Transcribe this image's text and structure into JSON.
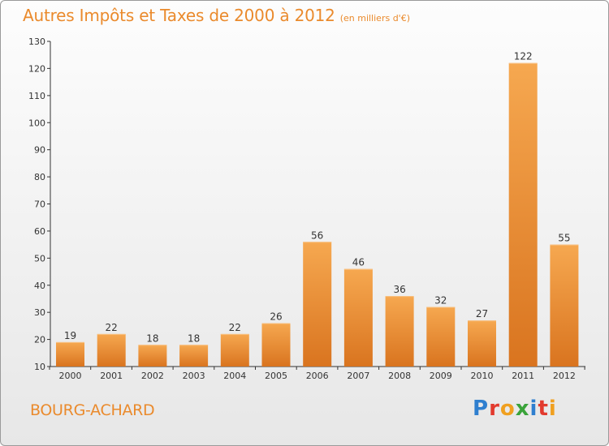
{
  "header": {
    "title": "Autres Impôts et Taxes de 2000 à 2012",
    "subtitle": "(en milliers d'€)"
  },
  "footer": {
    "commune": "BOURG-ACHARD"
  },
  "logo": {
    "text": "Proxiti",
    "letters": [
      {
        "char": "P",
        "color": "#2f7fcf"
      },
      {
        "char": "r",
        "color": "#e23a2e"
      },
      {
        "char": "o",
        "color": "#f0a020"
      },
      {
        "char": "x",
        "color": "#3aa33a"
      },
      {
        "char": "i",
        "color": "#2f7fcf"
      },
      {
        "char": "t",
        "color": "#e23a2e"
      },
      {
        "char": "i",
        "color": "#f0a020"
      }
    ]
  },
  "colors": {
    "accent": "#ea8a2c",
    "bar_light": "#f6a850",
    "bar_dark": "#d9741f"
  },
  "chart_data": {
    "type": "bar",
    "title": "Autres Impôts et Taxes de 2000 à 2012",
    "subtitle": "(en milliers d'€)",
    "xlabel": "",
    "ylabel": "",
    "ylim": [
      10,
      130
    ],
    "yticks": [
      10,
      20,
      30,
      40,
      50,
      60,
      70,
      80,
      90,
      100,
      110,
      120,
      130
    ],
    "grid": false,
    "categories": [
      "2000",
      "2001",
      "2002",
      "2003",
      "2004",
      "2005",
      "2006",
      "2007",
      "2008",
      "2009",
      "2010",
      "2011",
      "2012"
    ],
    "values": [
      19,
      22,
      18,
      18,
      22,
      26,
      56,
      46,
      36,
      32,
      27,
      122,
      55
    ]
  }
}
